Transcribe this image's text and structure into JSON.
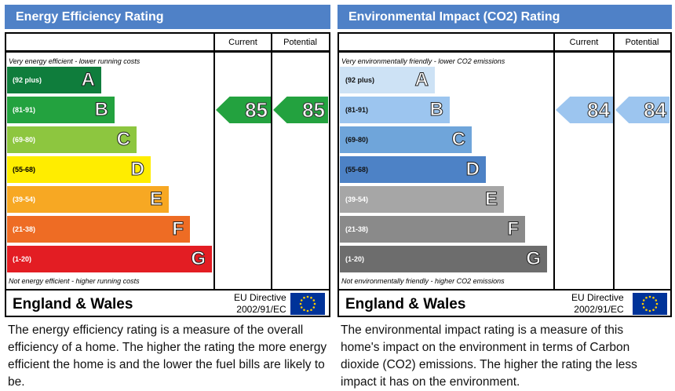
{
  "chart_data": [
    {
      "type": "bar",
      "title": "Energy Efficiency Rating",
      "columns": [
        "Current",
        "Potential"
      ],
      "top_note": "Very energy efficient - lower running costs",
      "bottom_note": "Not energy efficient - higher running costs",
      "bands": [
        {
          "letter": "A",
          "range": "(92 plus)",
          "color": "#0f7d3c"
        },
        {
          "letter": "B",
          "range": "(81-91)",
          "color": "#23a23f"
        },
        {
          "letter": "C",
          "range": "(69-80)",
          "color": "#8dc63f"
        },
        {
          "letter": "D",
          "range": "(55-68)",
          "color": "#ffed00"
        },
        {
          "letter": "E",
          "range": "(39-54)",
          "color": "#f7a823"
        },
        {
          "letter": "F",
          "range": "(21-38)",
          "color": "#ee6c24"
        },
        {
          "letter": "G",
          "range": "(1-20)",
          "color": "#e31d23"
        }
      ],
      "current": 85,
      "potential": 85,
      "arrow_color": "#23a23f",
      "region": "England & Wales",
      "directive": [
        "EU Directive",
        "2002/91/EC"
      ],
      "description": "The energy efficiency rating is a measure of the overall efficiency of a home. The higher the rating the more energy efficient the home is and the lower the fuel bills are likely to be."
    },
    {
      "type": "bar",
      "title": "Environmental Impact (CO2) Rating",
      "columns": [
        "Current",
        "Potential"
      ],
      "top_note": "Very environmentally friendly - lower CO2 emissions",
      "bottom_note": "Not environmentally friendly - higher CO2 emissions",
      "bands": [
        {
          "letter": "A",
          "range": "(92 plus)",
          "color": "#cde2f5"
        },
        {
          "letter": "B",
          "range": "(81-91)",
          "color": "#9cc5ef"
        },
        {
          "letter": "C",
          "range": "(69-80)",
          "color": "#6fa5da"
        },
        {
          "letter": "D",
          "range": "(55-68)",
          "color": "#4d82c6"
        },
        {
          "letter": "E",
          "range": "(39-54)",
          "color": "#a6a6a6"
        },
        {
          "letter": "F",
          "range": "(21-38)",
          "color": "#8a8a8a"
        },
        {
          "letter": "G",
          "range": "(1-20)",
          "color": "#6d6d6d"
        }
      ],
      "current": 84,
      "potential": 84,
      "arrow_color": "#9cc5ef",
      "region": "England & Wales",
      "directive": [
        "EU Directive",
        "2002/91/EC"
      ],
      "description": "The environmental impact rating is a measure of this home's impact on the environment in terms of Carbon dioxide (CO2) emissions. The higher the rating the less impact it has on the environment."
    }
  ]
}
